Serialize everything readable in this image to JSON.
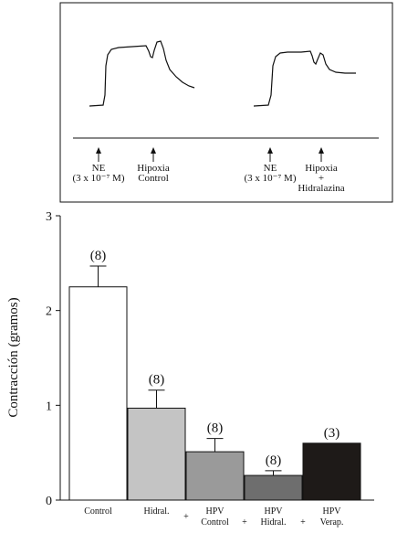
{
  "trace_panel": {
    "markers": [
      {
        "label": [
          "NE",
          "(3 x 10⁻⁷ M)"
        ]
      },
      {
        "label": [
          "Hipoxia",
          "Control"
        ]
      },
      {
        "label": [
          "NE",
          "(3 x 10⁻⁷ M)"
        ]
      },
      {
        "label": [
          "Hipoxia",
          "+",
          "Hidralazina"
        ]
      }
    ]
  },
  "chart_data": {
    "type": "bar",
    "title": "",
    "xlabel": "",
    "ylabel": "Contracción (gramos)",
    "ylim": [
      0,
      3
    ],
    "yticks": [
      "0",
      "1",
      "2",
      "3"
    ],
    "categories": [
      [
        "Control"
      ],
      [
        "Hidral."
      ],
      [
        "HPV",
        "Control"
      ],
      [
        "HPV",
        "Hidral."
      ],
      [
        "HPV",
        "Verap."
      ]
    ],
    "plus_signs": [
      "+",
      "+",
      "+"
    ],
    "values": [
      2.25,
      0.97,
      0.51,
      0.26,
      0.6
    ],
    "errors": [
      0.22,
      0.19,
      0.14,
      0.05,
      0
    ],
    "n_labels": [
      "(8)",
      "(8)",
      "(8)",
      "(8)",
      "(3)"
    ],
    "bar_colors": [
      "#ffffff",
      "#c4c4c4",
      "#9a9a9a",
      "#6e6e6e",
      "#1e1a18"
    ]
  }
}
